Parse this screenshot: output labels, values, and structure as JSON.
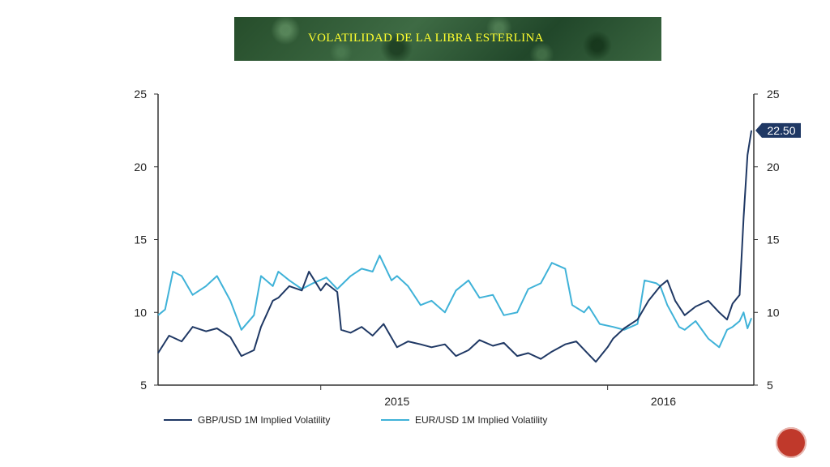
{
  "slide": {
    "title": "VOLATILIDAD DE LA LIBRA ESTERLINA",
    "page_number": ""
  },
  "chart_data": {
    "type": "line",
    "y_left": {
      "min": 5,
      "max": 25,
      "ticks": [
        5,
        10,
        15,
        20,
        25
      ]
    },
    "y_right": {
      "min": 5,
      "max": 25,
      "ticks": [
        5,
        10,
        15,
        20,
        25
      ]
    },
    "x_labels": [
      "2015",
      "2016"
    ],
    "legend_position": "bottom",
    "last_value_label": "22.50",
    "x_domain": [
      "2014-06",
      "2016-06"
    ],
    "series": [
      {
        "name": "GBP/USD 1M Implied Volatility",
        "color": "#1f3864",
        "points": [
          [
            "2014-06",
            7.2
          ],
          [
            "2014-06-15",
            8.4
          ],
          [
            "2014-07",
            8.0
          ],
          [
            "2014-07-15",
            9.0
          ],
          [
            "2014-08",
            8.7
          ],
          [
            "2014-08-15",
            8.9
          ],
          [
            "2014-09",
            8.3
          ],
          [
            "2014-09-15",
            7.0
          ],
          [
            "2014-10",
            7.4
          ],
          [
            "2014-10-10",
            9.0
          ],
          [
            "2014-10-25",
            10.8
          ],
          [
            "2014-11",
            11.0
          ],
          [
            "2014-11-15",
            11.8
          ],
          [
            "2014-12",
            11.5
          ],
          [
            "2014-12-10",
            12.8
          ],
          [
            "2014-12-25",
            11.5
          ],
          [
            "2015-01",
            12.0
          ],
          [
            "2015-01-15",
            11.4
          ],
          [
            "2015-01-20",
            8.8
          ],
          [
            "2015-02",
            8.6
          ],
          [
            "2015-02-15",
            9.0
          ],
          [
            "2015-03",
            8.4
          ],
          [
            "2015-03-15",
            9.2
          ],
          [
            "2015-04",
            7.6
          ],
          [
            "2015-04-15",
            8.0
          ],
          [
            "2015-05",
            7.8
          ],
          [
            "2015-05-15",
            7.6
          ],
          [
            "2015-06",
            7.8
          ],
          [
            "2015-06-15",
            7.0
          ],
          [
            "2015-07",
            7.4
          ],
          [
            "2015-07-15",
            8.1
          ],
          [
            "2015-08",
            7.7
          ],
          [
            "2015-08-15",
            7.9
          ],
          [
            "2015-09",
            7.0
          ],
          [
            "2015-09-15",
            7.2
          ],
          [
            "2015-10",
            6.8
          ],
          [
            "2015-10-15",
            7.3
          ],
          [
            "2015-11",
            7.8
          ],
          [
            "2015-11-15",
            8.0
          ],
          [
            "2015-12",
            7.1
          ],
          [
            "2015-12-10",
            6.6
          ],
          [
            "2015-12-25",
            7.6
          ],
          [
            "2016-01",
            8.2
          ],
          [
            "2016-01-15",
            8.9
          ],
          [
            "2016-02",
            9.5
          ],
          [
            "2016-02-15",
            10.8
          ],
          [
            "2016-03",
            11.8
          ],
          [
            "2016-03-10",
            12.2
          ],
          [
            "2016-03-20",
            10.8
          ],
          [
            "2016-04",
            9.8
          ],
          [
            "2016-04-15",
            10.4
          ],
          [
            "2016-05",
            10.8
          ],
          [
            "2016-05-15",
            10.0
          ],
          [
            "2016-05-25",
            9.5
          ],
          [
            "2016-06",
            10.6
          ],
          [
            "2016-06-10",
            11.2
          ],
          [
            "2016-06-15",
            16.5
          ],
          [
            "2016-06-20",
            20.8
          ],
          [
            "2016-06-25",
            22.5
          ]
        ]
      },
      {
        "name": "EUR/USD 1M Implied Volatility",
        "color": "#3fb2d8",
        "points": [
          [
            "2014-06",
            9.8
          ],
          [
            "2014-06-10",
            10.2
          ],
          [
            "2014-06-20",
            12.8
          ],
          [
            "2014-07",
            12.5
          ],
          [
            "2014-07-15",
            11.2
          ],
          [
            "2014-08",
            11.8
          ],
          [
            "2014-08-15",
            12.5
          ],
          [
            "2014-09",
            10.8
          ],
          [
            "2014-09-15",
            8.8
          ],
          [
            "2014-10",
            9.8
          ],
          [
            "2014-10-10",
            12.5
          ],
          [
            "2014-10-25",
            11.8
          ],
          [
            "2014-11",
            12.8
          ],
          [
            "2014-11-15",
            12.2
          ],
          [
            "2014-12",
            11.6
          ],
          [
            "2014-12-15",
            12.0
          ],
          [
            "2015-01",
            12.4
          ],
          [
            "2015-01-15",
            11.6
          ],
          [
            "2015-02",
            12.5
          ],
          [
            "2015-02-15",
            13.0
          ],
          [
            "2015-03",
            12.8
          ],
          [
            "2015-03-10",
            13.9
          ],
          [
            "2015-03-25",
            12.2
          ],
          [
            "2015-04",
            12.5
          ],
          [
            "2015-04-15",
            11.8
          ],
          [
            "2015-05",
            10.5
          ],
          [
            "2015-05-15",
            10.8
          ],
          [
            "2015-06",
            10.0
          ],
          [
            "2015-06-15",
            11.5
          ],
          [
            "2015-07",
            12.2
          ],
          [
            "2015-07-15",
            11.0
          ],
          [
            "2015-08",
            11.2
          ],
          [
            "2015-08-15",
            9.8
          ],
          [
            "2015-09",
            10.0
          ],
          [
            "2015-09-15",
            11.6
          ],
          [
            "2015-10",
            12.0
          ],
          [
            "2015-10-15",
            13.4
          ],
          [
            "2015-11",
            13.0
          ],
          [
            "2015-11-10",
            10.5
          ],
          [
            "2015-11-25",
            10.0
          ],
          [
            "2015-12",
            10.4
          ],
          [
            "2015-12-15",
            9.2
          ],
          [
            "2016-01",
            9.0
          ],
          [
            "2016-01-15",
            8.8
          ],
          [
            "2016-02",
            9.2
          ],
          [
            "2016-02-10",
            12.2
          ],
          [
            "2016-02-25",
            12.0
          ],
          [
            "2016-03",
            11.8
          ],
          [
            "2016-03-10",
            10.5
          ],
          [
            "2016-03-25",
            9.0
          ],
          [
            "2016-04",
            8.8
          ],
          [
            "2016-04-15",
            9.4
          ],
          [
            "2016-05",
            8.2
          ],
          [
            "2016-05-15",
            7.6
          ],
          [
            "2016-05-25",
            8.8
          ],
          [
            "2016-06",
            9.0
          ],
          [
            "2016-06-10",
            9.4
          ],
          [
            "2016-06-15",
            10.0
          ],
          [
            "2016-06-20",
            8.9
          ],
          [
            "2016-06-25",
            9.6
          ]
        ]
      }
    ]
  }
}
